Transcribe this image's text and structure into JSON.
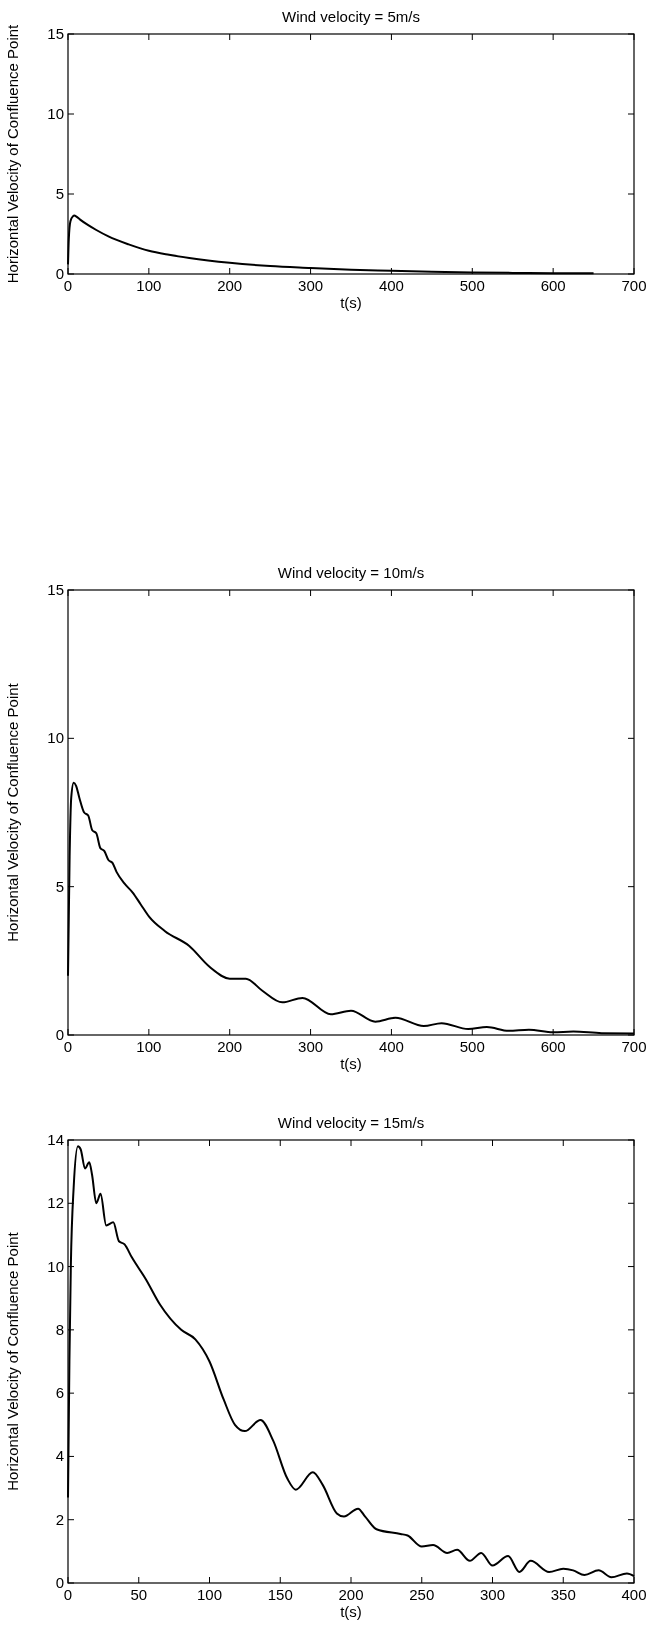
{
  "chart_data": [
    {
      "type": "line",
      "title": "Wind velocity = 5m/s",
      "xlabel": "t(s)",
      "ylabel": "Horizontal Velocity of Confluence Point",
      "xlim": [
        0,
        700
      ],
      "xticks": [
        0,
        100,
        200,
        300,
        400,
        500,
        600,
        700
      ],
      "ylim": [
        0,
        15
      ],
      "yticks": [
        0,
        5,
        10,
        15
      ],
      "grid": false,
      "series": [
        {
          "color": "#000000",
          "x": [
            0,
            1,
            3,
            6,
            8,
            10,
            15,
            25,
            35,
            50,
            75,
            100,
            125,
            150,
            200,
            250,
            300,
            350,
            400,
            450,
            500,
            550,
            600,
            650
          ],
          "values": [
            0.6,
            2.2,
            3.3,
            3.6,
            3.65,
            3.6,
            3.4,
            3.05,
            2.75,
            2.35,
            1.85,
            1.45,
            1.2,
            1.0,
            0.7,
            0.5,
            0.38,
            0.27,
            0.2,
            0.14,
            0.1,
            0.07,
            0.05,
            0.04
          ]
        }
      ]
    },
    {
      "type": "line",
      "title": "Wind velocity = 10m/s",
      "xlabel": "t(s)",
      "ylabel": "Horizontal Velocity of Confluence Point",
      "xlim": [
        0,
        700
      ],
      "xticks": [
        0,
        100,
        200,
        300,
        400,
        500,
        600,
        700
      ],
      "ylim": [
        0,
        15
      ],
      "yticks": [
        0,
        5,
        10,
        15
      ],
      "grid": false,
      "series": [
        {
          "color": "#000000",
          "x": [
            0,
            2,
            4,
            7,
            10,
            14,
            20,
            25,
            30,
            35,
            40,
            45,
            50,
            55,
            60,
            70,
            80,
            90,
            100,
            120,
            150,
            175,
            200,
            220,
            240,
            265,
            290,
            325,
            350,
            380,
            405,
            440,
            462,
            495,
            518,
            545,
            570,
            600,
            625,
            660,
            700
          ],
          "values": [
            2.0,
            6.0,
            8.0,
            8.5,
            8.4,
            8.0,
            7.5,
            7.4,
            6.9,
            6.8,
            6.3,
            6.2,
            5.9,
            5.8,
            5.5,
            5.1,
            4.8,
            4.4,
            4.0,
            3.5,
            3.0,
            2.3,
            1.9,
            1.9,
            1.5,
            1.1,
            1.25,
            0.7,
            0.82,
            0.45,
            0.58,
            0.3,
            0.4,
            0.2,
            0.27,
            0.14,
            0.18,
            0.09,
            0.12,
            0.06,
            0.05
          ]
        }
      ]
    },
    {
      "type": "line",
      "title": "Wind velocity = 15m/s",
      "xlabel": "t(s)",
      "ylabel": "Horizontal Velocity of Confluence Point",
      "xlim": [
        0,
        400
      ],
      "xticks": [
        0,
        50,
        100,
        150,
        200,
        250,
        300,
        350,
        400
      ],
      "ylim": [
        0,
        14
      ],
      "yticks": [
        0,
        2,
        4,
        6,
        8,
        10,
        12,
        14
      ],
      "grid": false,
      "series": [
        {
          "color": "#000000",
          "x": [
            0,
            1,
            2,
            4,
            7,
            9,
            12,
            15,
            17,
            20,
            23,
            27,
            32,
            36,
            40,
            45,
            55,
            65,
            80,
            90,
            100,
            110,
            118,
            125,
            136,
            145,
            155,
            161,
            173,
            180,
            190,
            195,
            205,
            210,
            218,
            235,
            240,
            250,
            258,
            268,
            275,
            284,
            292,
            300,
            311,
            319,
            327,
            340,
            350,
            357,
            365,
            375,
            384,
            395,
            400
          ],
          "values": [
            2.7,
            7.0,
            10.0,
            12.5,
            13.8,
            13.7,
            13.1,
            13.3,
            12.9,
            12.0,
            12.3,
            11.3,
            11.4,
            10.8,
            10.7,
            10.3,
            9.6,
            8.8,
            8.0,
            7.7,
            7.0,
            5.8,
            5.0,
            4.8,
            5.15,
            4.5,
            3.3,
            2.95,
            3.5,
            3.1,
            2.2,
            2.1,
            2.35,
            2.1,
            1.7,
            1.55,
            1.5,
            1.15,
            1.2,
            0.95,
            1.05,
            0.7,
            0.95,
            0.55,
            0.85,
            0.35,
            0.7,
            0.35,
            0.45,
            0.4,
            0.25,
            0.4,
            0.18,
            0.3,
            0.22
          ]
        }
      ]
    }
  ]
}
